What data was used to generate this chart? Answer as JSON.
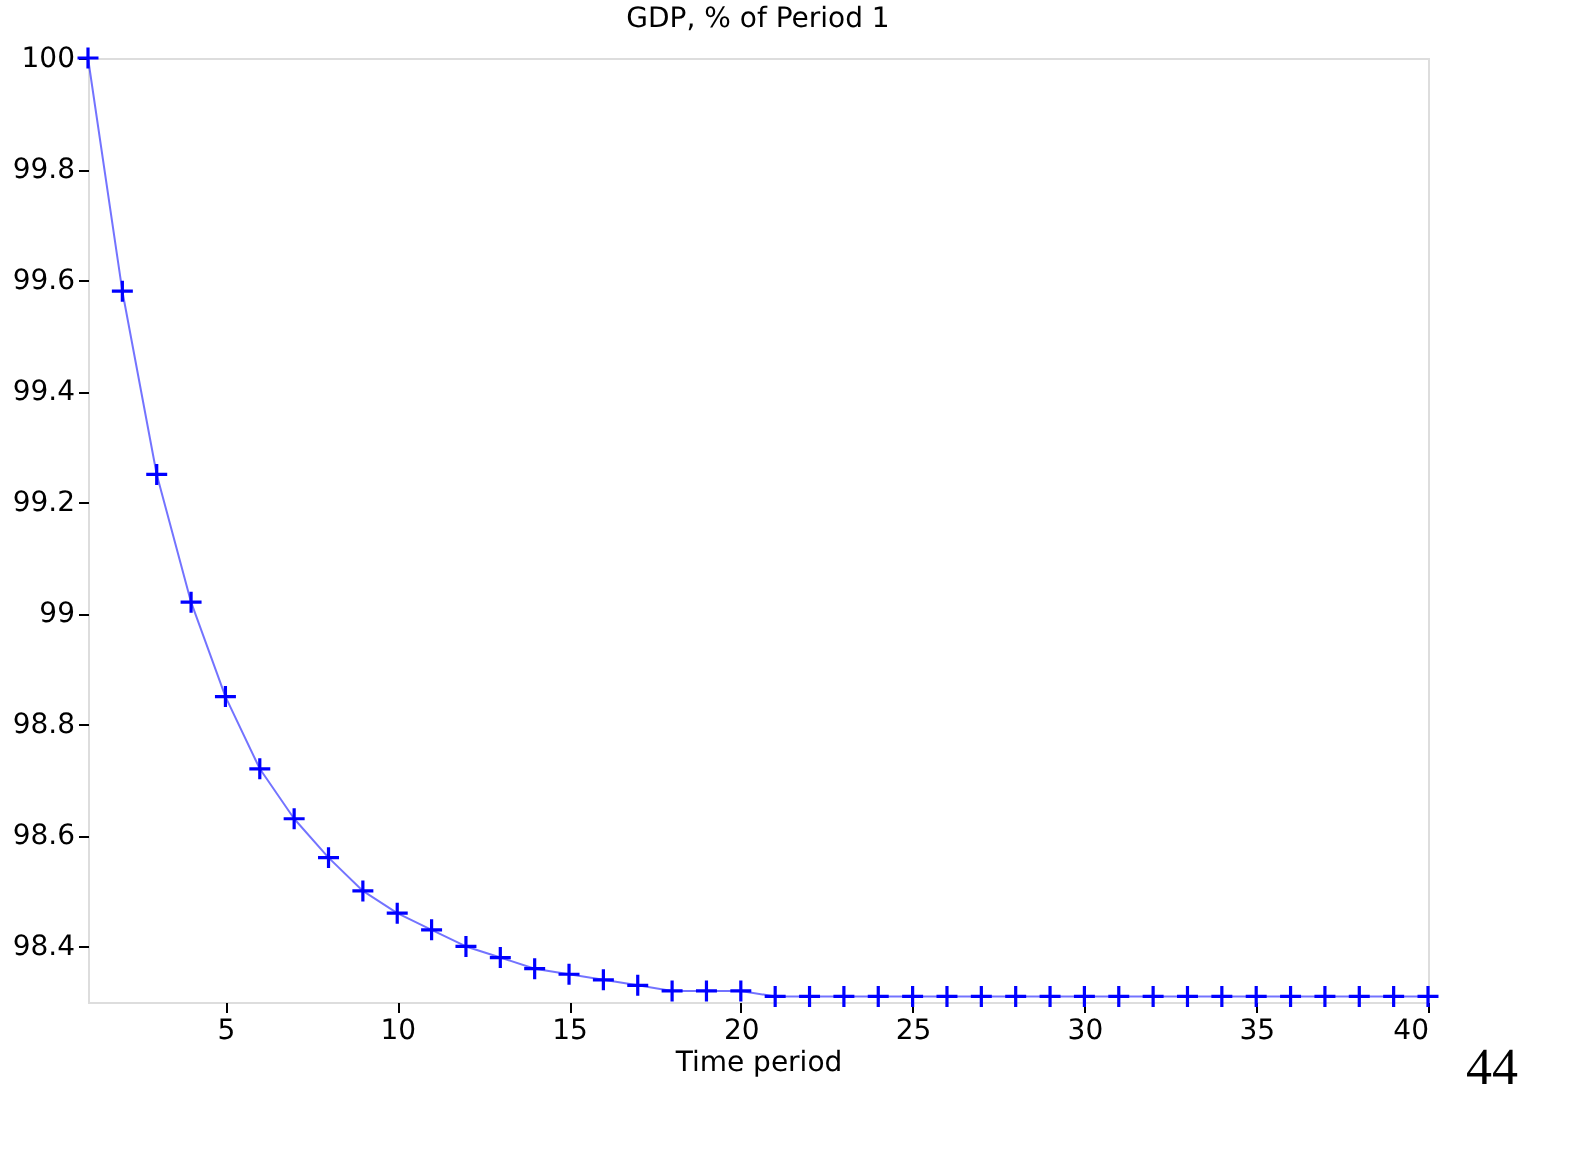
{
  "chart_data": {
    "type": "line",
    "title": "GDP, % of Period 1",
    "xlabel": "Time period",
    "x": [
      1,
      2,
      3,
      4,
      5,
      6,
      7,
      8,
      9,
      10,
      11,
      12,
      13,
      14,
      15,
      16,
      17,
      18,
      19,
      20,
      21,
      22,
      23,
      24,
      25,
      26,
      27,
      28,
      29,
      30,
      31,
      32,
      33,
      34,
      35,
      36,
      37,
      38,
      39,
      40
    ],
    "series": [
      {
        "color": "#0000ff",
        "values": [
          100,
          99.58,
          99.25,
          99.02,
          98.85,
          98.72,
          98.63,
          98.56,
          98.5,
          98.46,
          98.43,
          98.4,
          98.38,
          98.36,
          98.35,
          98.34,
          98.33,
          98.32,
          98.32,
          98.32,
          98.31,
          98.31,
          98.31,
          98.31,
          98.31,
          98.31,
          98.31,
          98.31,
          98.31,
          98.31,
          98.31,
          98.31,
          98.31,
          98.31,
          98.31,
          98.31,
          98.31,
          98.31,
          98.31,
          98.31
        ]
      }
    ],
    "xlim": [
      1,
      40
    ],
    "xticks": [
      5,
      10,
      15,
      20,
      25,
      30,
      35,
      40
    ],
    "ylim": [
      98.3,
      100
    ],
    "yticks": [
      98.4,
      98.6,
      98.8,
      99,
      99.2,
      99.4,
      99.6,
      99.8,
      100
    ],
    "marker": "cross",
    "line_style": "solid",
    "grid": false,
    "annotations": [
      "44"
    ]
  }
}
